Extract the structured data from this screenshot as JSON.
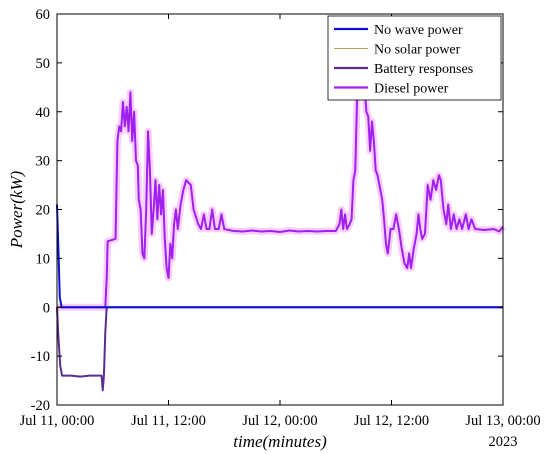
{
  "chart_data": {
    "type": "line",
    "xlabel": "time(minutes)",
    "ylabel": "Power(kW)",
    "x_ticks": [
      "Jul 11, 00:00",
      "Jul 11, 12:00",
      "Jul 12, 00:00",
      "Jul 12, 12:00",
      "Jul 13, 00:00"
    ],
    "x_tick_hours": [
      0,
      12,
      24,
      36,
      48
    ],
    "x_secondary_label": "2023",
    "xlim_hours": [
      0,
      48
    ],
    "ylim": [
      -20,
      60
    ],
    "y_ticks": [
      -20,
      -10,
      0,
      10,
      20,
      30,
      40,
      50,
      60
    ],
    "grid": false,
    "legend_position": "top-right",
    "series": [
      {
        "name": "No wave power",
        "color": "#1010d8",
        "points": [
          [
            0,
            21
          ],
          [
            0.15,
            12
          ],
          [
            0.3,
            2
          ],
          [
            0.5,
            0
          ],
          [
            48,
            0
          ]
        ]
      },
      {
        "name": "No solar power",
        "color": "#b5a45e",
        "points": [
          [
            0,
            0
          ],
          [
            48,
            0
          ]
        ]
      },
      {
        "name": "Battery responses",
        "color": "#5a2d91",
        "points": [
          [
            0,
            0
          ],
          [
            0.15,
            -6
          ],
          [
            0.35,
            -12
          ],
          [
            0.55,
            -14
          ],
          [
            1.5,
            -14
          ],
          [
            2.5,
            -14.2
          ],
          [
            3.5,
            -14
          ],
          [
            4.5,
            -14
          ],
          [
            4.8,
            -14
          ],
          [
            4.92,
            -17
          ],
          [
            5.05,
            -14
          ],
          [
            5.2,
            -5
          ],
          [
            5.35,
            0
          ],
          [
            48,
            0
          ]
        ]
      },
      {
        "name": "Diesel power",
        "color": "#a020f0",
        "points": [
          [
            0,
            0
          ],
          [
            5.2,
            0
          ],
          [
            5.35,
            6
          ],
          [
            5.45,
            13.5
          ],
          [
            6.3,
            14
          ],
          [
            6.5,
            34
          ],
          [
            6.7,
            37
          ],
          [
            6.9,
            36
          ],
          [
            7.1,
            42
          ],
          [
            7.3,
            37
          ],
          [
            7.5,
            41
          ],
          [
            7.7,
            36
          ],
          [
            7.9,
            44
          ],
          [
            8.1,
            34
          ],
          [
            8.3,
            40
          ],
          [
            8.5,
            30
          ],
          [
            8.7,
            29
          ],
          [
            8.8,
            22
          ],
          [
            9,
            20
          ],
          [
            9.2,
            11
          ],
          [
            9.4,
            10
          ],
          [
            9.6,
            20
          ],
          [
            9.8,
            36
          ],
          [
            10,
            28
          ],
          [
            10.2,
            15
          ],
          [
            10.4,
            20
          ],
          [
            10.6,
            26
          ],
          [
            10.8,
            18
          ],
          [
            11,
            25
          ],
          [
            11.2,
            19
          ],
          [
            11.4,
            24
          ],
          [
            11.6,
            14
          ],
          [
            11.8,
            8
          ],
          [
            12,
            6
          ],
          [
            12.2,
            13
          ],
          [
            12.4,
            10
          ],
          [
            12.6,
            17
          ],
          [
            12.8,
            20
          ],
          [
            13,
            16
          ],
          [
            13.3,
            21
          ],
          [
            13.6,
            24
          ],
          [
            13.9,
            26
          ],
          [
            14.4,
            25
          ],
          [
            14.7,
            20
          ],
          [
            15.2,
            17
          ],
          [
            15.5,
            16
          ],
          [
            15.8,
            19
          ],
          [
            16.1,
            16
          ],
          [
            16.4,
            16
          ],
          [
            16.7,
            20
          ],
          [
            17,
            16
          ],
          [
            17.4,
            16
          ],
          [
            17.7,
            19
          ],
          [
            18,
            16
          ],
          [
            19,
            15.6
          ],
          [
            20,
            15.5
          ],
          [
            21,
            15.7
          ],
          [
            22,
            15.5
          ],
          [
            23,
            15.6
          ],
          [
            24,
            15.4
          ],
          [
            25,
            15.7
          ],
          [
            26,
            15.5
          ],
          [
            27,
            15.6
          ],
          [
            28,
            15.5
          ],
          [
            29,
            15.6
          ],
          [
            30,
            15.6
          ],
          [
            30.4,
            17
          ],
          [
            30.6,
            20
          ],
          [
            30.8,
            16
          ],
          [
            31,
            19
          ],
          [
            31.2,
            16
          ],
          [
            31.5,
            17
          ],
          [
            31.7,
            18
          ],
          [
            31.9,
            26
          ],
          [
            32.1,
            28
          ],
          [
            32.3,
            43
          ],
          [
            32.5,
            44
          ],
          [
            32.8,
            43
          ],
          [
            33.1,
            45
          ],
          [
            33.3,
            40
          ],
          [
            33.5,
            39
          ],
          [
            33.7,
            32
          ],
          [
            33.9,
            38
          ],
          [
            34.1,
            34
          ],
          [
            34.3,
            28
          ],
          [
            34.5,
            27
          ],
          [
            34.8,
            24
          ],
          [
            35,
            22
          ],
          [
            35.2,
            18
          ],
          [
            35.4,
            13
          ],
          [
            35.6,
            11
          ],
          [
            35.9,
            16
          ],
          [
            36.2,
            16
          ],
          [
            36.5,
            19
          ],
          [
            36.8,
            16
          ],
          [
            37.1,
            12
          ],
          [
            37.4,
            9
          ],
          [
            37.7,
            8
          ],
          [
            37.9,
            11
          ],
          [
            38.1,
            8
          ],
          [
            38.4,
            12
          ],
          [
            38.7,
            15
          ],
          [
            38.9,
            19
          ],
          [
            39.1,
            16
          ],
          [
            39.3,
            14
          ],
          [
            39.6,
            15
          ],
          [
            39.9,
            25
          ],
          [
            40.2,
            22
          ],
          [
            40.5,
            26
          ],
          [
            40.8,
            24
          ],
          [
            41.1,
            27
          ],
          [
            41.3,
            26
          ],
          [
            41.6,
            20
          ],
          [
            41.9,
            17
          ],
          [
            42.1,
            21
          ],
          [
            42.4,
            16
          ],
          [
            42.7,
            19
          ],
          [
            43,
            16
          ],
          [
            43.3,
            18
          ],
          [
            43.6,
            16
          ],
          [
            44,
            19
          ],
          [
            44.3,
            16
          ],
          [
            44.6,
            18
          ],
          [
            45,
            16
          ],
          [
            46,
            15.8
          ],
          [
            47,
            16
          ],
          [
            47.6,
            15.5
          ],
          [
            48,
            16.5
          ]
        ]
      }
    ]
  }
}
